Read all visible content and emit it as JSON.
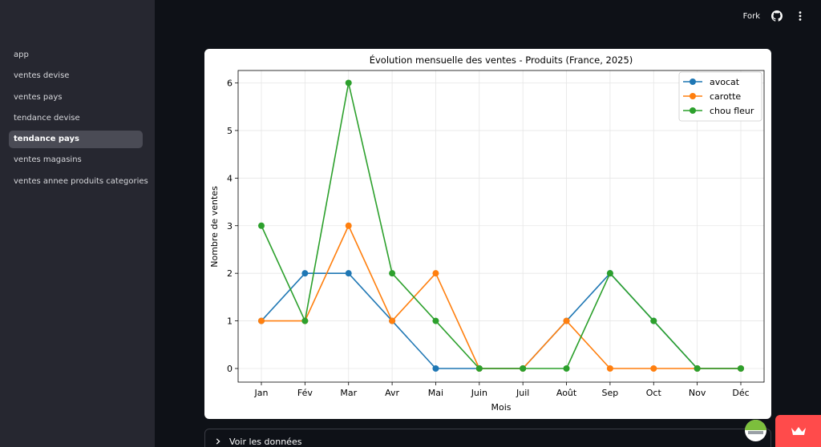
{
  "sidebar": {
    "items": [
      {
        "label": "app",
        "active": false
      },
      {
        "label": "ventes devise",
        "active": false
      },
      {
        "label": "ventes pays",
        "active": false
      },
      {
        "label": "tendance devise",
        "active": false
      },
      {
        "label": "tendance pays",
        "active": true
      },
      {
        "label": "ventes magasins",
        "active": false
      },
      {
        "label": "ventes annee produits categories",
        "active": false
      }
    ]
  },
  "header": {
    "fork_label": "Fork",
    "icons": [
      "github-icon",
      "more-vertical-icon"
    ]
  },
  "expander": {
    "label": "Voir les données",
    "icon": "chevron-right-icon"
  },
  "colors": {
    "background": "#0e1117",
    "sidebar": "#262730",
    "accent": "#ff4b4b",
    "series_avocat": "#1f77b4",
    "series_carotte": "#ff7f0e",
    "series_chou_fleur": "#2ca02c"
  },
  "chart_data": {
    "type": "line",
    "title": "Évolution mensuelle des ventes - Produits (France, 2025)",
    "xlabel": "Mois",
    "ylabel": "Nombre de ventes",
    "categories": [
      "Jan",
      "Fév",
      "Mar",
      "Avr",
      "Mai",
      "Juin",
      "Juil",
      "Août",
      "Sep",
      "Oct",
      "Nov",
      "Déc"
    ],
    "ylim": [
      0,
      6
    ],
    "yticks": [
      "0",
      "1",
      "2",
      "3",
      "4",
      "5",
      "6"
    ],
    "grid": true,
    "legend_position": "top-right",
    "series": [
      {
        "name": "avocat",
        "color": "#1f77b4",
        "values": [
          1,
          2,
          2,
          1,
          0,
          0,
          0,
          1,
          2,
          1,
          0,
          0
        ]
      },
      {
        "name": "carotte",
        "color": "#ff7f0e",
        "values": [
          1,
          1,
          3,
          1,
          2,
          0,
          0,
          1,
          0,
          0,
          0,
          0
        ]
      },
      {
        "name": "chou fleur",
        "color": "#2ca02c",
        "values": [
          3,
          1,
          6,
          2,
          1,
          0,
          0,
          0,
          2,
          1,
          0,
          0
        ]
      }
    ]
  }
}
